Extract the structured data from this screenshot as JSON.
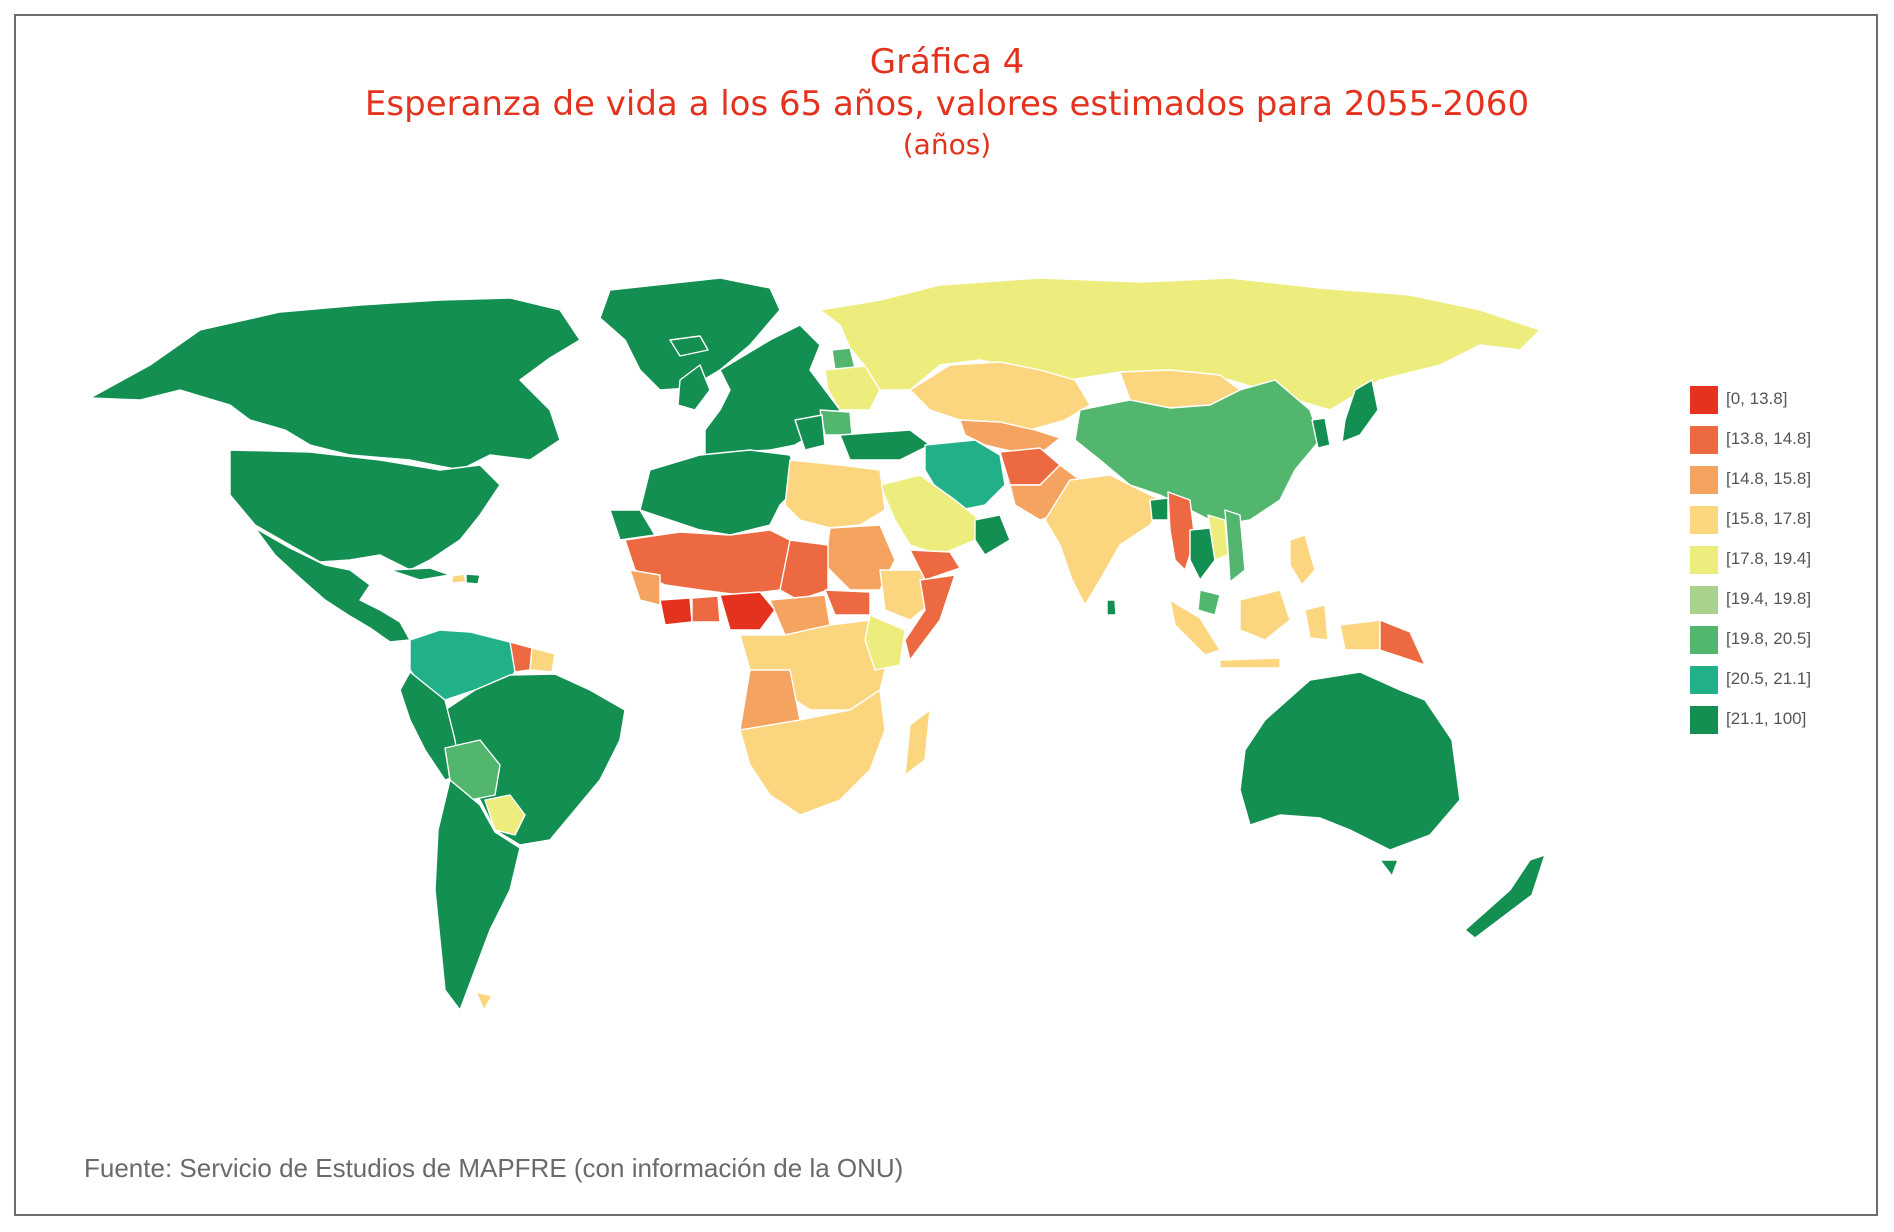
{
  "title": {
    "line1": "Gráfica 4",
    "line2": "Esperanza de vida a los 65 años, valores estimados para 2055-2060",
    "line3": "(años)"
  },
  "colors": {
    "title": "#e3321e",
    "c0": "#e5321f",
    "c1": "#ec6941",
    "c2": "#f4a460",
    "c3": "#fcd57f",
    "c4": "#eded7e",
    "c5": "#a9d18e",
    "c6": "#52b66e",
    "c7": "#22b088",
    "c8": "#138f52"
  },
  "legend": [
    {
      "label": "[0, 13.8]",
      "color": "#e5321f"
    },
    {
      "label": "[13.8, 14.8]",
      "color": "#ec6941"
    },
    {
      "label": "[14.8, 15.8]",
      "color": "#f4a460"
    },
    {
      "label": "[15.8, 17.8]",
      "color": "#fcd57f"
    },
    {
      "label": "[17.8, 19.4]",
      "color": "#eded7e"
    },
    {
      "label": "[19.4, 19.8]",
      "color": "#a9d18e"
    },
    {
      "label": "[19.8, 20.5]",
      "color": "#52b66e"
    },
    {
      "label": "[20.5, 21.1]",
      "color": "#22b088"
    },
    {
      "label": "[21.1, 100]",
      "color": "#138f52"
    }
  ],
  "source": "Fuente: Servicio de Estudios de MAPFRE (con información de la ONU)"
}
